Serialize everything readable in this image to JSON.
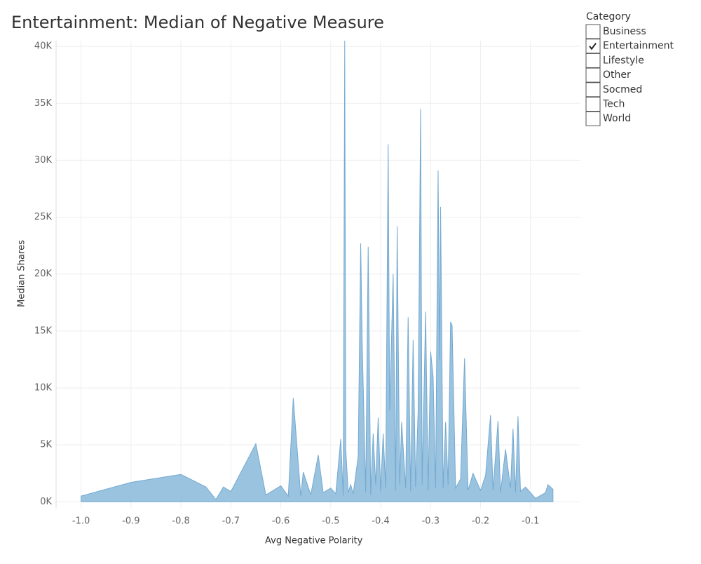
{
  "chart_data": {
    "type": "area",
    "title": "Entertainment: Median of Negative Measure",
    "x_label": "Avg Negative Polarity",
    "y_label": "Median Shares",
    "color": "#8fbcdb",
    "grid": true,
    "xlim": [
      -1.05,
      0
    ],
    "ylim": [
      -600,
      40500
    ],
    "xticks": [
      {
        "value": -1,
        "label": "-1.0"
      },
      -0.9,
      -0.8,
      -0.7,
      -0.6,
      -0.5,
      -0.4,
      -0.3,
      -0.2,
      -0.1
    ],
    "yticks": [
      {
        "value": 0,
        "label": "0K"
      },
      {
        "value": 5000,
        "label": "5K"
      },
      {
        "value": 10000,
        "label": "10K"
      },
      {
        "value": 15000,
        "label": "15K"
      },
      {
        "value": 20000,
        "label": "20K"
      },
      {
        "value": 25000,
        "label": "25K"
      },
      {
        "value": 30000,
        "label": "30K"
      },
      {
        "value": 35000,
        "label": "35K"
      },
      {
        "value": 40000,
        "label": "40K"
      }
    ],
    "x": [
      -1.0,
      -0.9,
      -0.8,
      -0.75,
      -0.73,
      -0.715,
      -0.7,
      -0.675,
      -0.65,
      -0.63,
      -0.6,
      -0.585,
      -0.575,
      -0.56,
      -0.555,
      -0.54,
      -0.525,
      -0.515,
      -0.5,
      -0.49,
      -0.48,
      -0.475,
      -0.472,
      -0.47,
      -0.465,
      -0.46,
      -0.455,
      -0.445,
      -0.44,
      -0.437,
      -0.43,
      -0.425,
      -0.42,
      -0.415,
      -0.41,
      -0.405,
      -0.4,
      -0.395,
      -0.39,
      -0.385,
      -0.382,
      -0.375,
      -0.37,
      -0.367,
      -0.362,
      -0.358,
      -0.35,
      -0.345,
      -0.34,
      -0.335,
      -0.33,
      -0.325,
      -0.32,
      -0.317,
      -0.31,
      -0.305,
      -0.3,
      -0.295,
      -0.29,
      -0.285,
      -0.282,
      -0.28,
      -0.275,
      -0.27,
      -0.265,
      -0.26,
      -0.257,
      -0.25,
      -0.24,
      -0.232,
      -0.225,
      -0.215,
      -0.2,
      -0.19,
      -0.18,
      -0.175,
      -0.165,
      -0.16,
      -0.15,
      -0.14,
      -0.135,
      -0.13,
      -0.125,
      -0.12,
      -0.11,
      -0.09,
      -0.07,
      -0.065,
      -0.06,
      -0.055
    ],
    "values": [
      500,
      1700,
      2400,
      1300,
      200,
      1300,
      900,
      3000,
      5100,
      600,
      1400,
      500,
      9100,
      500,
      2600,
      600,
      4100,
      800,
      1200,
      700,
      5500,
      500,
      40500,
      4700,
      800,
      1500,
      700,
      4000,
      22700,
      14000,
      800,
      22400,
      600,
      6000,
      1500,
      7400,
      900,
      6000,
      1200,
      31400,
      8000,
      20000,
      1000,
      24200,
      1500,
      7000,
      1200,
      16200,
      900,
      14200,
      1300,
      8000,
      34500,
      1500,
      16700,
      1000,
      13200,
      11000,
      1200,
      29100,
      12500,
      25900,
      1200,
      7000,
      1500,
      15800,
      15500,
      1200,
      2000,
      12600,
      1000,
      2500,
      1000,
      2300,
      7600,
      1000,
      7100,
      800,
      4600,
      1200,
      6400,
      800,
      7500,
      900,
      1300,
      300,
      800,
      1500,
      1300,
      1100
    ]
  },
  "filter": {
    "title": "Category",
    "items": [
      {
        "label": "Business",
        "checked": false
      },
      {
        "label": "Entertainment",
        "checked": true
      },
      {
        "label": "Lifestyle",
        "checked": false
      },
      {
        "label": "Other",
        "checked": false
      },
      {
        "label": "Socmed",
        "checked": false
      },
      {
        "label": "Tech",
        "checked": false
      },
      {
        "label": "World",
        "checked": false
      }
    ]
  }
}
